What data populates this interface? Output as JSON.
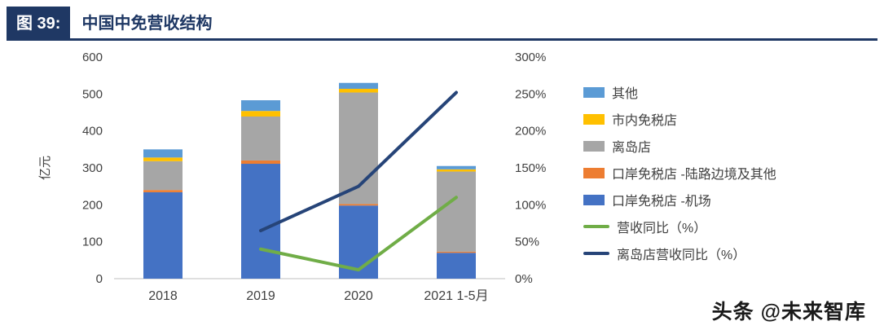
{
  "header": {
    "figure_label": "图 39:",
    "title": "中国中免营收结构"
  },
  "footer": {
    "credit": "头条 @未来智库"
  },
  "colors": {
    "header_navy": "#1F3864",
    "axis_text": "#404040"
  },
  "chart_data": {
    "type": "bar",
    "title": "中国中免营收结构",
    "categories": [
      "2018",
      "2019",
      "2020",
      "2021 1-5月"
    ],
    "bar_series": [
      {
        "name": "口岸免税店 -机场",
        "color": "#4472C4",
        "values": [
          234,
          311,
          198,
          70
        ]
      },
      {
        "name": "口岸免税店 -陆路边境及其他",
        "color": "#ED7D31",
        "values": [
          6,
          9,
          4,
          3
        ]
      },
      {
        "name": "离岛店",
        "color": "#A6A6A6",
        "values": [
          78,
          119,
          302,
          217
        ]
      },
      {
        "name": "市内免税店",
        "color": "#FFC000",
        "values": [
          10,
          15,
          10,
          6
        ]
      },
      {
        "name": "其他",
        "color": "#5B9BD5",
        "values": [
          22,
          29,
          16,
          9
        ]
      }
    ],
    "line_series": [
      {
        "name": "营收同比（%）",
        "color": "#70AD47",
        "axis": "right",
        "values": [
          null,
          40,
          12,
          110
        ]
      },
      {
        "name": "离岛店营收同比（%）",
        "color": "#264478",
        "axis": "right",
        "values": [
          null,
          65,
          125,
          252
        ]
      }
    ],
    "left_axis": {
      "label": "亿元",
      "min": 0,
      "max": 600,
      "step": 100,
      "suffix": ""
    },
    "right_axis": {
      "label": "",
      "min": 0,
      "max": 300,
      "step": 50,
      "suffix": "%"
    },
    "grid": false,
    "legend_position": "right"
  }
}
